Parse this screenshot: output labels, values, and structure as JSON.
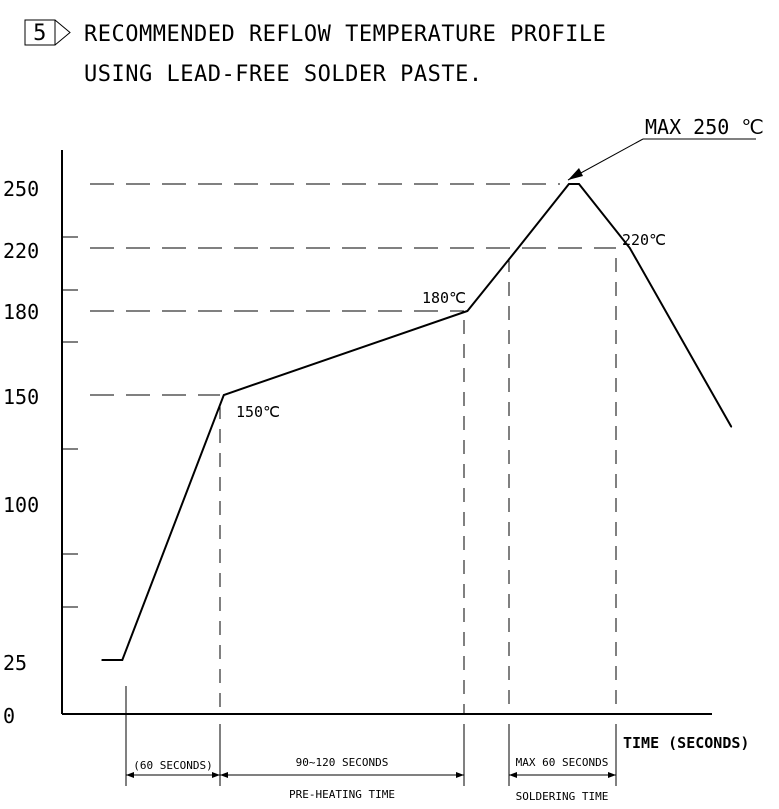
{
  "note": {
    "number": "5",
    "title_line1": "RECOMMENDED REFLOW TEMPERATURE PROFILE",
    "title_line2": "USING LEAD-FREE SOLDER PASTE."
  },
  "chart_data": {
    "type": "line",
    "title": "RECOMMENDED REFLOW TEMPERATURE PROFILE USING LEAD-FREE SOLDER PASTE.",
    "xlabel": "TIME (SECONDS)",
    "ylabel": "",
    "y_ticks": [
      "0",
      "25",
      "100",
      "150",
      "180",
      "220",
      "250"
    ],
    "ylim": [
      0,
      250
    ],
    "grid": false,
    "profile_points": [
      {
        "x": 0,
        "y": 25
      },
      {
        "x": 10,
        "y": 25
      },
      {
        "x": 60,
        "y": 150
      },
      {
        "x": 180,
        "y": 180
      },
      {
        "x": 205,
        "y": 220
      },
      {
        "x": 230,
        "y": 250
      },
      {
        "x": 235,
        "y": 250
      },
      {
        "x": 260,
        "y": 220
      },
      {
        "x": 310,
        "y": 135
      }
    ],
    "annotations": {
      "pt150": "150℃",
      "pt180": "180℃",
      "pt220": "220℃",
      "max": "MAX 250 ℃"
    },
    "intervals": [
      {
        "label": "(60 SECONDS)",
        "caption": ""
      },
      {
        "label": "90~120 SECONDS",
        "caption": "PRE-HEATING TIME"
      },
      {
        "label": "MAX 60 SECONDS",
        "caption": "SOLDERING TIME"
      }
    ]
  }
}
